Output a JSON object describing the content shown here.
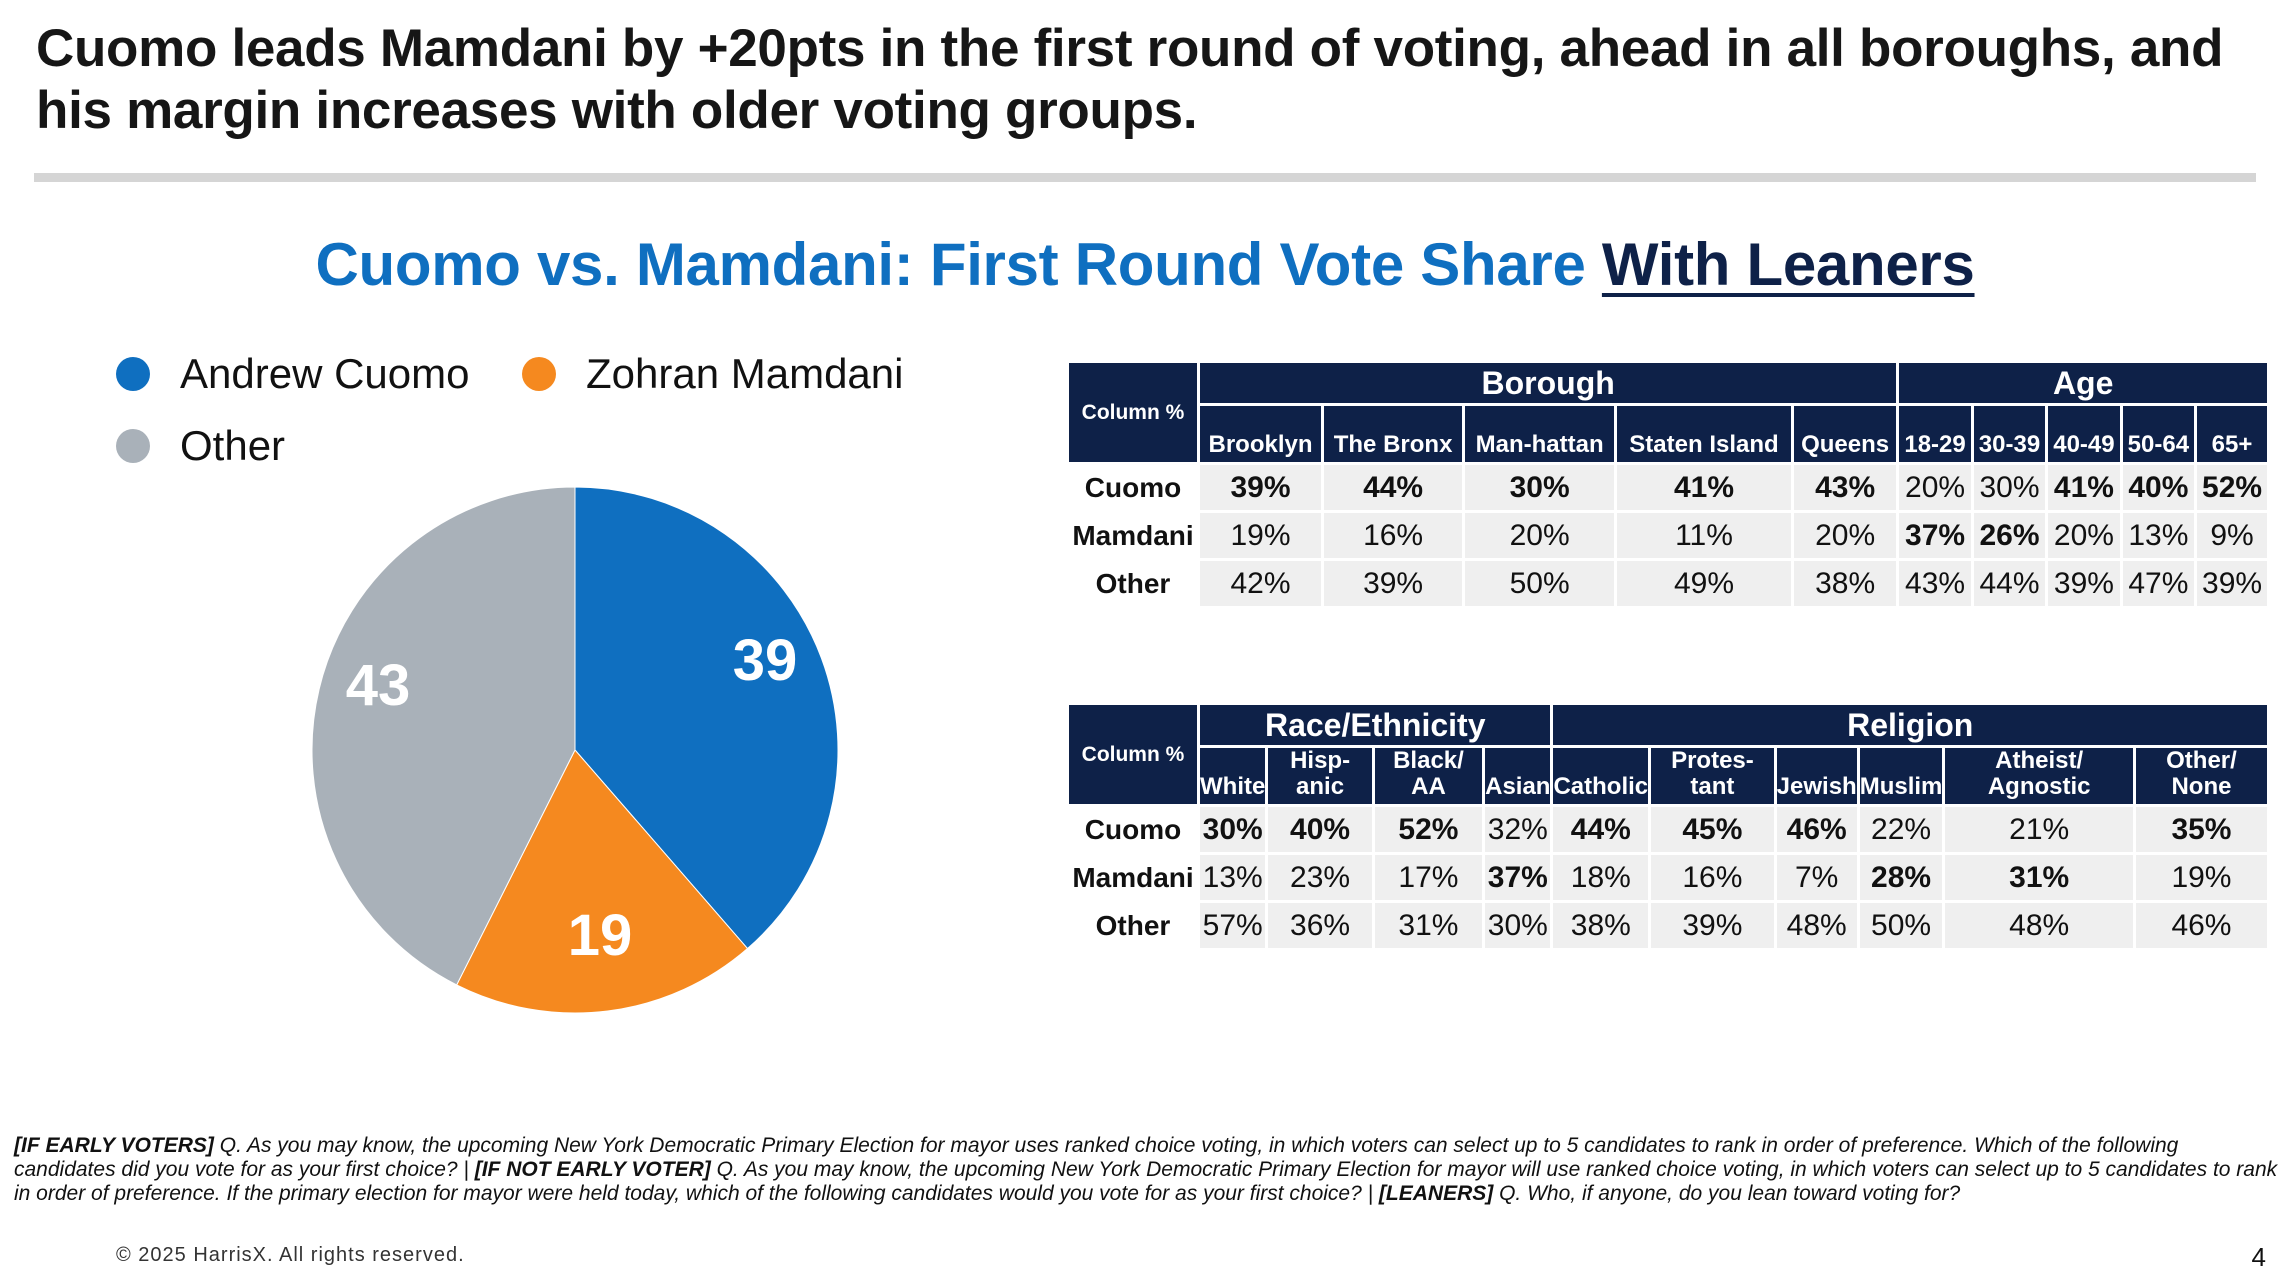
{
  "headline": "Cuomo leads Mamdani by +20pts in the first round of voting, ahead in all boroughs, and his margin increases with older voting groups.",
  "subtitle": {
    "main": "Cuomo vs. Mamdani: First Round Vote Share",
    "emph": "With Leaners"
  },
  "colors": {
    "cuomo": "#0f6fc0",
    "mamdani": "#f5891f",
    "other": "#a9b1b9",
    "navy": "#0e2148"
  },
  "chart_data": {
    "type": "pie",
    "legend": [
      "Andrew Cuomo",
      "Zohran Mamdani",
      "Other"
    ],
    "slices": [
      {
        "name": "Andrew Cuomo",
        "value": 39,
        "label": "39",
        "color": "#0f6fc0"
      },
      {
        "name": "Zohran Mamdani",
        "value": 19,
        "label": "19",
        "color": "#f5891f"
      },
      {
        "name": "Other",
        "value": 43,
        "label": "43",
        "color": "#a9b1b9"
      }
    ],
    "legend_position": "top-left"
  },
  "table1": {
    "corner": "Column %",
    "groups": [
      {
        "label": "Borough",
        "span": 5
      },
      {
        "label": "Age",
        "span": 5
      }
    ],
    "columns": [
      "Brooklyn",
      "The Bronx",
      "Man-hattan",
      "Staten Island",
      "Queens",
      "18-29",
      "30-39",
      "40-49",
      "50-64",
      "65+"
    ],
    "rows": [
      {
        "label": "Cuomo",
        "cells": [
          "39%",
          "44%",
          "30%",
          "41%",
          "43%",
          "20%",
          "30%",
          "41%",
          "40%",
          "52%"
        ],
        "bold": [
          true,
          true,
          true,
          true,
          true,
          false,
          false,
          true,
          true,
          true
        ]
      },
      {
        "label": "Mamdani",
        "cells": [
          "19%",
          "16%",
          "20%",
          "11%",
          "20%",
          "37%",
          "26%",
          "20%",
          "13%",
          "9%"
        ],
        "bold": [
          false,
          false,
          false,
          false,
          false,
          true,
          true,
          false,
          false,
          false
        ]
      },
      {
        "label": "Other",
        "cells": [
          "42%",
          "39%",
          "50%",
          "49%",
          "38%",
          "43%",
          "44%",
          "39%",
          "47%",
          "39%"
        ],
        "bold": [
          false,
          false,
          false,
          false,
          false,
          false,
          false,
          false,
          false,
          false
        ]
      }
    ]
  },
  "table2": {
    "corner": "Column %",
    "groups": [
      {
        "label": "Race/Ethnicity",
        "span": 4
      },
      {
        "label": "Religion",
        "span": 7
      }
    ],
    "columns": [
      "White",
      "Hisp-anic",
      "Black/ AA",
      "Asian",
      "Catholic",
      "Protes-tant",
      "Jewish",
      "Muslim",
      "Atheist/ Agnostic",
      "Other/ None"
    ],
    "rows": [
      {
        "label": "Cuomo",
        "cells": [
          "30%",
          "40%",
          "52%",
          "32%",
          "44%",
          "45%",
          "46%",
          "22%",
          "21%",
          "35%"
        ],
        "bold": [
          true,
          true,
          true,
          false,
          true,
          true,
          true,
          false,
          false,
          true
        ]
      },
      {
        "label": "Mamdani",
        "cells": [
          "13%",
          "23%",
          "17%",
          "37%",
          "18%",
          "16%",
          "7%",
          "28%",
          "31%",
          "19%"
        ],
        "bold": [
          false,
          false,
          false,
          true,
          false,
          false,
          false,
          true,
          true,
          false
        ]
      },
      {
        "label": "Other",
        "cells": [
          "57%",
          "36%",
          "31%",
          "30%",
          "38%",
          "39%",
          "48%",
          "50%",
          "48%",
          "46%"
        ],
        "bold": [
          false,
          false,
          false,
          false,
          false,
          false,
          false,
          false,
          false,
          false
        ]
      }
    ]
  },
  "footnote": [
    {
      "b": "[IF EARLY VOTERS]",
      "t": " Q. As you may know, the upcoming New York Democratic Primary Election for mayor uses ranked choice voting, in which voters can select up to 5 candidates to rank in order of preference. Which of the following candidates did you vote for as your first choice? | "
    },
    {
      "b": "[IF NOT EARLY VOTER]",
      "t": " Q. As you may know, the upcoming New York Democratic Primary Election for mayor will use ranked choice voting, in which voters can select up to 5 candidates to rank in order of preference. If the primary election for mayor were held today, which of the following candidates would you vote for as your first choice? | "
    },
    {
      "b": "[LEANERS]",
      "t": " Q. Who, if anyone, do you lean toward voting for?"
    }
  ],
  "copyright": "© 2025 HarrisX. All rights reserved.",
  "page_number": "4"
}
